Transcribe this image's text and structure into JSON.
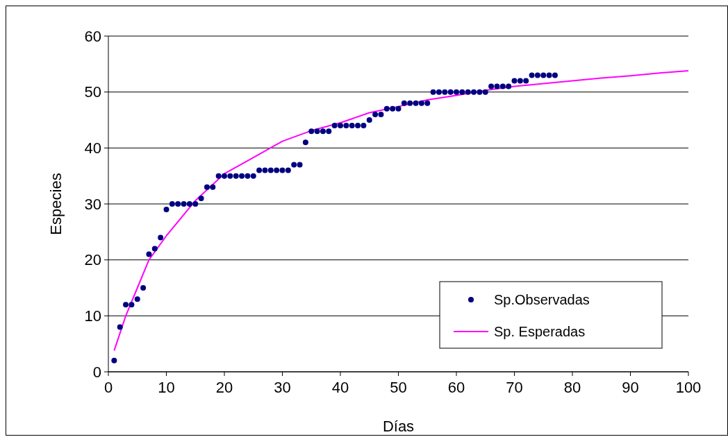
{
  "chart_data": {
    "type": "scatter",
    "xlabel": "Días",
    "ylabel": "Especies",
    "xlim": [
      0,
      100
    ],
    "xticks": [
      0,
      10,
      20,
      30,
      40,
      50,
      60,
      70,
      80,
      90,
      100
    ],
    "ylim": [
      0,
      60
    ],
    "yticks": [
      0,
      10,
      20,
      30,
      40,
      50,
      60
    ],
    "grid": "y",
    "legend": "bottom right",
    "series": [
      {
        "name": "Sp.Observadas",
        "marker": "circle",
        "color": "#000080",
        "x": [
          1,
          2,
          3,
          4,
          5,
          6,
          7,
          8,
          9,
          10,
          11,
          12,
          13,
          14,
          15,
          16,
          17,
          18,
          19,
          20,
          21,
          22,
          23,
          24,
          25,
          26,
          27,
          28,
          29,
          30,
          31,
          32,
          33,
          34,
          35,
          36,
          37,
          38,
          39,
          40,
          41,
          42,
          43,
          44,
          45,
          46,
          47,
          48,
          49,
          50,
          51,
          52,
          53,
          54,
          55,
          56,
          57,
          58,
          59,
          60,
          61,
          62,
          63,
          64,
          65,
          66,
          67,
          68,
          69,
          70,
          71,
          72,
          73,
          74,
          75,
          76,
          77
        ],
        "values": [
          2,
          8,
          12,
          12,
          13,
          15,
          21,
          22,
          24,
          29,
          30,
          30,
          30,
          30,
          30,
          31,
          33,
          33,
          35,
          35,
          35,
          35,
          35,
          35,
          35,
          36,
          36,
          36,
          36,
          36,
          36,
          37,
          37,
          41,
          43,
          43,
          43,
          43,
          44,
          44,
          44,
          44,
          44,
          44,
          45,
          46,
          46,
          47,
          47,
          47,
          48,
          48,
          48,
          48,
          48,
          50,
          50,
          50,
          50,
          50,
          50,
          50,
          50,
          50,
          50,
          51,
          51,
          51,
          51,
          52,
          52,
          52,
          53,
          53,
          53,
          53,
          53
        ]
      },
      {
        "name": "Sp. Esperadas",
        "type": "line",
        "marker": "none",
        "line_style": "solid",
        "color": "#ff00ff",
        "x": [
          1,
          3,
          5,
          7,
          10,
          15,
          20,
          25,
          30,
          35,
          40,
          45,
          50,
          55,
          60,
          65,
          70,
          75,
          80,
          85,
          90,
          95,
          100
        ],
        "values": [
          3.8,
          10,
          15,
          20,
          24.3,
          30.6,
          35.4,
          38.3,
          41.2,
          43.1,
          44.5,
          46.3,
          47.4,
          48.6,
          49.4,
          50.3,
          51,
          51.5,
          52,
          52.5,
          52.9,
          53.4,
          53.8
        ]
      }
    ]
  }
}
